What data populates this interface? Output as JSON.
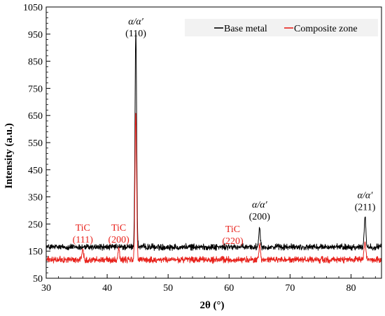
{
  "chart_data": {
    "type": "line",
    "xlabel": "2θ (°)",
    "ylabel": "Intensity (a.u.)",
    "xlim": [
      30,
      85
    ],
    "ylim": [
      50,
      1050
    ],
    "x_ticks": [
      30,
      40,
      50,
      60,
      70,
      80
    ],
    "y_ticks": [
      50,
      150,
      250,
      350,
      450,
      550,
      650,
      750,
      850,
      950,
      1050
    ],
    "grid": false,
    "legend_position": "top-right",
    "series": [
      {
        "name": "Base metal",
        "color": "#000000",
        "baseline": 165,
        "noise": 14,
        "peaks": [
          {
            "x": 44.7,
            "height": 965
          },
          {
            "x": 65.0,
            "height": 240
          },
          {
            "x": 82.3,
            "height": 280
          }
        ]
      },
      {
        "name": "Composite zone",
        "color": "#e8221c",
        "baseline": 118,
        "noise": 14,
        "peaks": [
          {
            "x": 36.0,
            "height": 158
          },
          {
            "x": 41.9,
            "height": 162
          },
          {
            "x": 44.7,
            "height": 663
          },
          {
            "x": 65.0,
            "height": 170
          },
          {
            "x": 82.3,
            "height": 185
          }
        ]
      }
    ],
    "annotations": [
      {
        "id": "alpha-110",
        "lines": [
          "α/α′",
          "(110)"
        ],
        "x": 44.7,
        "y": 985,
        "color": "#000000"
      },
      {
        "id": "alpha-200",
        "lines": [
          "α/α′",
          "(200)"
        ],
        "x": 65.0,
        "y": 310,
        "color": "#000000"
      },
      {
        "id": "alpha-211",
        "lines": [
          "α/α′",
          "(211)"
        ],
        "x": 82.3,
        "y": 345,
        "color": "#000000"
      },
      {
        "id": "tic-111",
        "lines": [
          "TiC",
          "(111)"
        ],
        "x": 36.0,
        "y": 225,
        "color": "#e8221c"
      },
      {
        "id": "tic-200",
        "lines": [
          "TiC",
          "(200)"
        ],
        "x": 41.9,
        "y": 225,
        "color": "#e8221c"
      },
      {
        "id": "tic-220",
        "lines": [
          "TiC",
          "(220)"
        ],
        "x": 60.6,
        "y": 220,
        "color": "#e8221c"
      }
    ]
  }
}
